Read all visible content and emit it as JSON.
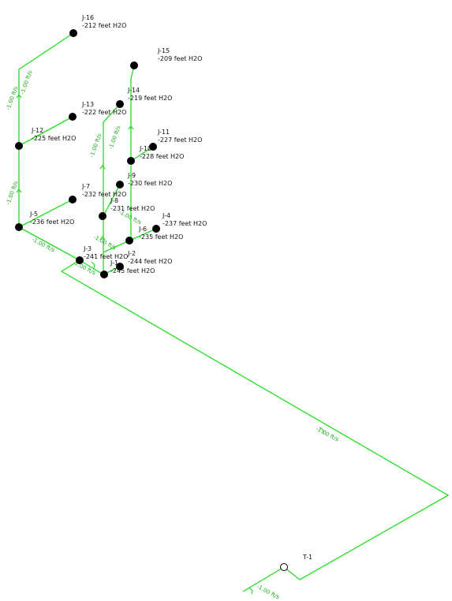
{
  "colors": {
    "pipe": "#22dd22",
    "node": "#000000",
    "label": "#111111",
    "background": "#ffffff"
  },
  "nodes": [
    {
      "id": "J-16",
      "pressure": "-212 feet H2O"
    },
    {
      "id": "J-15",
      "pressure": "-209 feet H2O"
    },
    {
      "id": "J-13",
      "pressure": "-222 feet H2O"
    },
    {
      "id": "J-14",
      "pressure": "-219 feet H2O"
    },
    {
      "id": "J-12",
      "pressure": "-225 feet H2O"
    },
    {
      "id": "J-11",
      "pressure": "-227 feet H2O"
    },
    {
      "id": "J-10",
      "pressure": "-228 feet H2O"
    },
    {
      "id": "J-7",
      "pressure": "-232 feet H2O"
    },
    {
      "id": "J-8",
      "pressure": "-231 feet H2O"
    },
    {
      "id": "J-9",
      "pressure": "-230 feet H2O"
    },
    {
      "id": "J-5",
      "pressure": "-236 feet H2O"
    },
    {
      "id": "J-4",
      "pressure": "-237 feet H2O"
    },
    {
      "id": "J-6",
      "pressure": "-235 feet H2O"
    },
    {
      "id": "J-3",
      "pressure": "-241 feet H2O"
    },
    {
      "id": "J-2",
      "pressure": "-244 feet H2O"
    },
    {
      "id": "J-1",
      "pressure": "-245 feet H2O"
    }
  ],
  "tank": {
    "id": "T-1"
  },
  "pipe_labels": [
    "-1.00 ft/s",
    "-1.00 ft/s",
    "-1.00 ft/s",
    "-1.00 ft/s",
    "-1.00 ft/s",
    "-1.00 ft/s",
    "-1.00 ft/s",
    "-1.00 ft/s",
    "-1.00 ft/s",
    "-1.00 ft/s",
    "-1.00 ft/s"
  ]
}
